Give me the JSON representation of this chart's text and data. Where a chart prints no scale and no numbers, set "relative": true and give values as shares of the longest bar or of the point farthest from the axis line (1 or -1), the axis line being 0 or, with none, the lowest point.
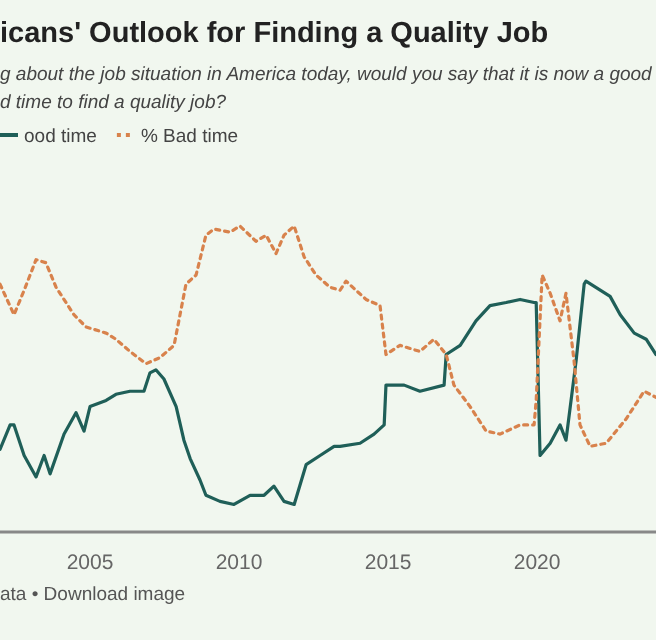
{
  "chart_data": {
    "type": "line",
    "title": "icans' Outlook for Finding a Quality Job",
    "subtitle": "g about the job situation in America today, would you say that it is now a good\nd time to find a quality job?",
    "annotations": [
      "ata • Download image"
    ],
    "relative": true,
    "legend": "top left",
    "xlim": [
      2001.98,
      2023.99
    ],
    "xticks": [
      2005,
      2010,
      2015,
      2020
    ],
    "series": [
      {
        "name": "ood time",
        "color": "#1f5f58",
        "line_style": "solid",
        "x": [
          2001.98,
          2002.32,
          2002.45,
          2002.79,
          2003.19,
          2003.46,
          2003.66,
          2004.13,
          2004.53,
          2004.8,
          2005,
          2005.54,
          2005.87,
          2006.34,
          2006.81,
          2007.01,
          2007.21,
          2007.48,
          2007.89,
          2008.15,
          2008.36,
          2008.69,
          2008.89,
          2009.36,
          2009.83,
          2010.37,
          2010.84,
          2011.17,
          2011.51,
          2011.85,
          2012.25,
          2012.72,
          2013.19,
          2013.39,
          2014.06,
          2014.53,
          2014.87,
          2014.93,
          2015.54,
          2016.07,
          2016.88,
          2016.95,
          2017.42,
          2017.95,
          2018.42,
          2018.96,
          2019.43,
          2019.9,
          2019.97,
          2020.1,
          2020.44,
          2020.77,
          2020.97,
          2021.31,
          2021.58,
          2021.64,
          2022.45,
          2022.79,
          2023.26,
          2023.66,
          2023.99
        ],
        "values": [
          0.27,
          0.35,
          0.35,
          0.25,
          0.18,
          0.25,
          0.19,
          0.32,
          0.39,
          0.33,
          0.41,
          0.43,
          0.45,
          0.46,
          0.46,
          0.52,
          0.53,
          0.5,
          0.41,
          0.3,
          0.24,
          0.17,
          0.12,
          0.1,
          0.09,
          0.12,
          0.12,
          0.15,
          0.1,
          0.09,
          0.22,
          0.25,
          0.28,
          0.28,
          0.29,
          0.32,
          0.35,
          0.48,
          0.48,
          0.46,
          0.48,
          0.58,
          0.61,
          0.69,
          0.74,
          0.75,
          0.76,
          0.75,
          0.75,
          0.25,
          0.29,
          0.35,
          0.3,
          0.56,
          0.81,
          0.82,
          0.77,
          0.71,
          0.65,
          0.63,
          0.58
        ]
      },
      {
        "name": "% Bad time",
        "color": "#d8824c",
        "line_style": "dotted",
        "x": [
          2001.98,
          2002.45,
          2002.79,
          2003.19,
          2003.52,
          2003.86,
          2004.46,
          2004.87,
          2005.54,
          2005.87,
          2006.34,
          2006.88,
          2007.35,
          2007.82,
          2008.22,
          2008.56,
          2008.89,
          2009.16,
          2009.7,
          2010.03,
          2010.57,
          2010.91,
          2011.24,
          2011.51,
          2011.85,
          2012.18,
          2012.58,
          2013.05,
          2013.39,
          2013.59,
          2014.26,
          2014.73,
          2014.93,
          2015.4,
          2016.07,
          2016.54,
          2016.95,
          2017.21,
          2017.75,
          2018.29,
          2018.76,
          2019.43,
          2019.9,
          2019.97,
          2020.17,
          2020.44,
          2020.77,
          2020.97,
          2021.24,
          2021.44,
          2021.78,
          2022.32,
          2022.99,
          2023.59,
          2023.99
        ],
        "values": [
          0.81,
          0.71,
          0.79,
          0.89,
          0.88,
          0.8,
          0.71,
          0.67,
          0.65,
          0.63,
          0.59,
          0.55,
          0.57,
          0.61,
          0.81,
          0.84,
          0.97,
          0.99,
          0.98,
          1,
          0.95,
          0.97,
          0.91,
          0.97,
          1,
          0.9,
          0.84,
          0.8,
          0.79,
          0.82,
          0.76,
          0.74,
          0.58,
          0.61,
          0.59,
          0.63,
          0.58,
          0.48,
          0.41,
          0.33,
          0.32,
          0.35,
          0.35,
          0.43,
          0.84,
          0.78,
          0.69,
          0.78,
          0.56,
          0.35,
          0.28,
          0.29,
          0.37,
          0.46,
          0.44
        ]
      }
    ]
  }
}
